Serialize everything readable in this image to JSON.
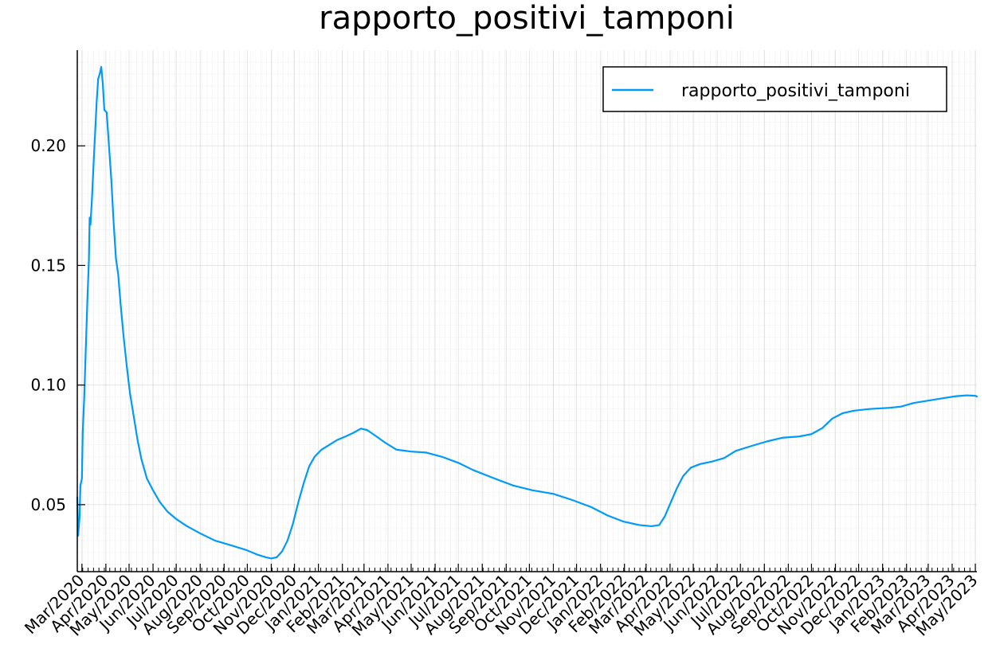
{
  "chart_data": {
    "type": "line",
    "title": "rapporto_positivi_tamponi",
    "xlabel": "",
    "ylabel": "",
    "x_type": "date",
    "xlim": [
      "2020-02-24",
      "2023-05-03"
    ],
    "ylim": [
      0.022,
      0.24
    ],
    "grid": true,
    "minor_grid": true,
    "legend": {
      "position": "top-right",
      "entries": [
        "rapporto_positivi_tamponi"
      ]
    },
    "y_ticks": [
      0.05,
      0.1,
      0.15,
      0.2
    ],
    "y_tick_labels": [
      "0.05",
      "0.10",
      "0.15",
      "0.20"
    ],
    "x_ticks": [
      "2020-03-01",
      "2020-04-01",
      "2020-05-01",
      "2020-06-01",
      "2020-07-01",
      "2020-08-01",
      "2020-09-01",
      "2020-10-01",
      "2020-11-01",
      "2020-12-01",
      "2021-01-01",
      "2021-02-01",
      "2021-03-01",
      "2021-04-01",
      "2021-05-01",
      "2021-06-01",
      "2021-07-01",
      "2021-08-01",
      "2021-09-01",
      "2021-10-01",
      "2021-11-01",
      "2021-12-01",
      "2022-01-01",
      "2022-02-01",
      "2022-03-01",
      "2022-04-01",
      "2022-05-01",
      "2022-06-01",
      "2022-07-01",
      "2022-08-01",
      "2022-09-01",
      "2022-10-01",
      "2022-11-01",
      "2022-12-01",
      "2023-01-01",
      "2023-02-01",
      "2023-03-01",
      "2023-04-01",
      "2023-05-01"
    ],
    "x_tick_labels": [
      "Mar/2020",
      "Apr/2020",
      "May/2020",
      "Jun/2020",
      "Jul/2020",
      "Aug/2020",
      "Sep/2020",
      "Oct/2020",
      "Nov/2020",
      "Dec/2020",
      "Jan/2021",
      "Feb/2021",
      "Mar/2021",
      "Apr/2021",
      "May/2021",
      "Jun/2021",
      "Jul/2021",
      "Aug/2021",
      "Sep/2021",
      "Oct/2021",
      "Nov/2021",
      "Dec/2021",
      "Jan/2022",
      "Feb/2022",
      "Mar/2022",
      "Apr/2022",
      "May/2022",
      "Jun/2022",
      "Jul/2022",
      "Aug/2022",
      "Sep/2022",
      "Oct/2022",
      "Nov/2022",
      "Dec/2022",
      "Jan/2023",
      "Feb/2023",
      "Mar/2023",
      "Apr/2023",
      "May/2023"
    ],
    "series": [
      {
        "name": "rapporto_positivi_tamponi",
        "color": "#009af9",
        "points": [
          [
            "2020-02-24",
            0.053
          ],
          [
            "2020-02-25",
            0.037
          ],
          [
            "2020-02-27",
            0.045
          ],
          [
            "2020-02-28",
            0.058
          ],
          [
            "2020-03-01",
            0.061
          ],
          [
            "2020-03-02",
            0.08
          ],
          [
            "2020-03-04",
            0.095
          ],
          [
            "2020-03-06",
            0.115
          ],
          [
            "2020-03-08",
            0.135
          ],
          [
            "2020-03-10",
            0.152
          ],
          [
            "2020-03-11",
            0.17
          ],
          [
            "2020-03-12",
            0.167
          ],
          [
            "2020-03-14",
            0.178
          ],
          [
            "2020-03-16",
            0.192
          ],
          [
            "2020-03-18",
            0.205
          ],
          [
            "2020-03-20",
            0.218
          ],
          [
            "2020-03-22",
            0.228
          ],
          [
            "2020-03-24",
            0.23
          ],
          [
            "2020-03-26",
            0.233
          ],
          [
            "2020-03-28",
            0.226
          ],
          [
            "2020-03-30",
            0.215
          ],
          [
            "2020-04-02",
            0.214
          ],
          [
            "2020-04-05",
            0.2
          ],
          [
            "2020-04-08",
            0.186
          ],
          [
            "2020-04-11",
            0.168
          ],
          [
            "2020-04-14",
            0.153
          ],
          [
            "2020-04-17",
            0.146
          ],
          [
            "2020-04-20",
            0.134
          ],
          [
            "2020-04-24",
            0.12
          ],
          [
            "2020-04-28",
            0.108
          ],
          [
            "2020-05-02",
            0.097
          ],
          [
            "2020-05-07",
            0.087
          ],
          [
            "2020-05-12",
            0.077
          ],
          [
            "2020-05-17",
            0.069
          ],
          [
            "2020-05-24",
            0.061
          ],
          [
            "2020-06-01",
            0.056
          ],
          [
            "2020-06-10",
            0.051
          ],
          [
            "2020-06-20",
            0.047
          ],
          [
            "2020-07-01",
            0.044
          ],
          [
            "2020-07-15",
            0.041
          ],
          [
            "2020-08-01",
            0.038
          ],
          [
            "2020-08-20",
            0.035
          ],
          [
            "2020-09-10",
            0.033
          ],
          [
            "2020-09-30",
            0.031
          ],
          [
            "2020-10-15",
            0.029
          ],
          [
            "2020-10-25",
            0.028
          ],
          [
            "2020-11-01",
            0.0275
          ],
          [
            "2020-11-08",
            0.028
          ],
          [
            "2020-11-15",
            0.0305
          ],
          [
            "2020-11-22",
            0.035
          ],
          [
            "2020-11-29",
            0.042
          ],
          [
            "2020-12-06",
            0.051
          ],
          [
            "2020-12-13",
            0.059
          ],
          [
            "2020-12-20",
            0.066
          ],
          [
            "2020-12-27",
            0.07
          ],
          [
            "2021-01-05",
            0.073
          ],
          [
            "2021-01-15",
            0.075
          ],
          [
            "2021-01-25",
            0.077
          ],
          [
            "2021-02-05",
            0.0785
          ],
          [
            "2021-02-15",
            0.08
          ],
          [
            "2021-02-25",
            0.0818
          ],
          [
            "2021-03-05",
            0.0812
          ],
          [
            "2021-03-15",
            0.079
          ],
          [
            "2021-03-28",
            0.076
          ],
          [
            "2021-04-12",
            0.073
          ],
          [
            "2021-05-01",
            0.0722
          ],
          [
            "2021-05-20",
            0.0718
          ],
          [
            "2021-06-10",
            0.07
          ],
          [
            "2021-07-01",
            0.0675
          ],
          [
            "2021-07-20",
            0.0645
          ],
          [
            "2021-08-15",
            0.0612
          ],
          [
            "2021-09-10",
            0.058
          ],
          [
            "2021-10-05",
            0.056
          ],
          [
            "2021-11-01",
            0.0545
          ],
          [
            "2021-11-25",
            0.052
          ],
          [
            "2021-12-20",
            0.049
          ],
          [
            "2022-01-10",
            0.0455
          ],
          [
            "2022-01-30",
            0.043
          ],
          [
            "2022-02-20",
            0.0415
          ],
          [
            "2022-03-08",
            0.041
          ],
          [
            "2022-03-18",
            0.0415
          ],
          [
            "2022-03-25",
            0.045
          ],
          [
            "2022-04-02",
            0.051
          ],
          [
            "2022-04-10",
            0.057
          ],
          [
            "2022-04-18",
            0.062
          ],
          [
            "2022-04-28",
            0.0655
          ],
          [
            "2022-05-10",
            0.067
          ],
          [
            "2022-05-25",
            0.068
          ],
          [
            "2022-06-10",
            0.0695
          ],
          [
            "2022-06-25",
            0.0725
          ],
          [
            "2022-07-15",
            0.0745
          ],
          [
            "2022-08-05",
            0.0765
          ],
          [
            "2022-08-25",
            0.078
          ],
          [
            "2022-09-15",
            0.0785
          ],
          [
            "2022-10-01",
            0.0795
          ],
          [
            "2022-10-15",
            0.082
          ],
          [
            "2022-10-28",
            0.086
          ],
          [
            "2022-11-10",
            0.0882
          ],
          [
            "2022-11-25",
            0.0893
          ],
          [
            "2022-12-15",
            0.09
          ],
          [
            "2023-01-10",
            0.0905
          ],
          [
            "2023-01-25",
            0.091
          ],
          [
            "2023-02-10",
            0.0925
          ],
          [
            "2023-03-01",
            0.0935
          ],
          [
            "2023-03-20",
            0.0945
          ],
          [
            "2023-04-05",
            0.0953
          ],
          [
            "2023-04-20",
            0.0957
          ],
          [
            "2023-05-01",
            0.0955
          ],
          [
            "2023-05-03",
            0.0952
          ]
        ]
      }
    ]
  }
}
